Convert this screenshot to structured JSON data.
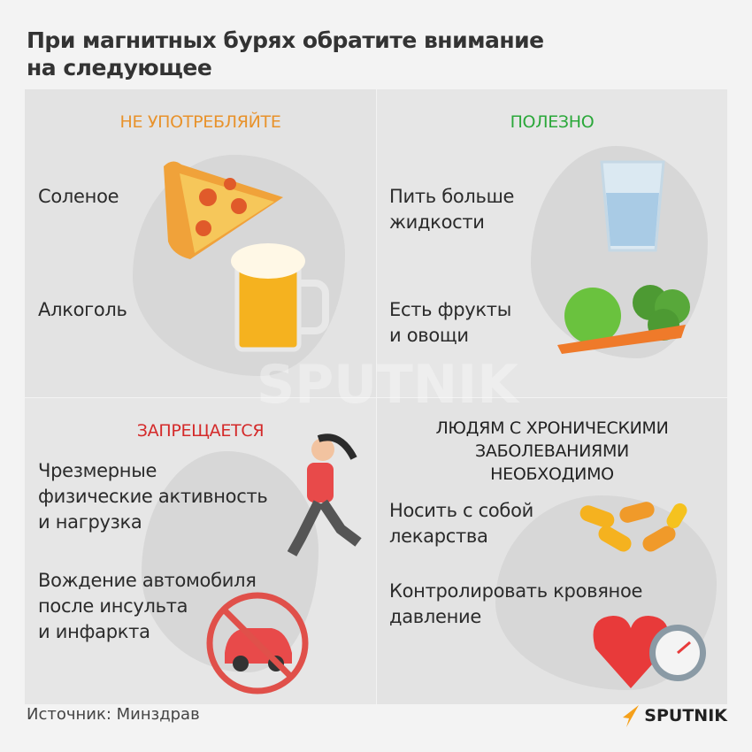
{
  "title": {
    "line1": "При магнитных бурях обратите внимание",
    "line2": "на следующее"
  },
  "panels": {
    "dont_consume": {
      "header": "НЕ УПОТРЕБЛЯЙТЕ",
      "color": "#e8922b",
      "items": [
        {
          "label": "Соленое",
          "icon": "pizza-icon"
        },
        {
          "label": "Алкоголь",
          "icon": "beer-mug-icon"
        }
      ]
    },
    "useful": {
      "header": "ПОЛЕЗНО",
      "color": "#2ba83a",
      "items": [
        {
          "line1": "Пить больше",
          "line2": "жидкости",
          "icon": "water-glass-icon"
        },
        {
          "line1": "Есть фрукты",
          "line2": "и овощи",
          "icon": "fruits-vegetables-icon"
        }
      ]
    },
    "forbidden": {
      "header": "ЗАПРЕЩАЕТСЯ",
      "color": "#d42a2a",
      "items": [
        {
          "line1": "Чрезмерные",
          "line2": "физические активность",
          "line3": "и нагрузка",
          "icon": "running-woman-icon"
        },
        {
          "line1": "Вождение автомобиля",
          "line2": "после инсульта",
          "line3": "и инфаркта",
          "icon": "no-car-icon"
        }
      ]
    },
    "chronic": {
      "header_line1": "ЛЮДЯМ С ХРОНИЧЕСКИМИ",
      "header_line2": "ЗАБОЛЕВАНИЯМИ",
      "header_line3": "НЕОБХОДИМО",
      "color": "#222222",
      "items": [
        {
          "line1": "Носить с собой",
          "line2": "лекарства",
          "icon": "pills-icon"
        },
        {
          "line1": "Контролировать кровяное",
          "line2": "давление",
          "icon": "heart-tonometer-icon"
        }
      ]
    }
  },
  "watermark": "SPUTNIK",
  "footer": {
    "source": "Источник: Минздрав",
    "logo": "SPUTNIK",
    "logo_color": "#f5a01a"
  }
}
